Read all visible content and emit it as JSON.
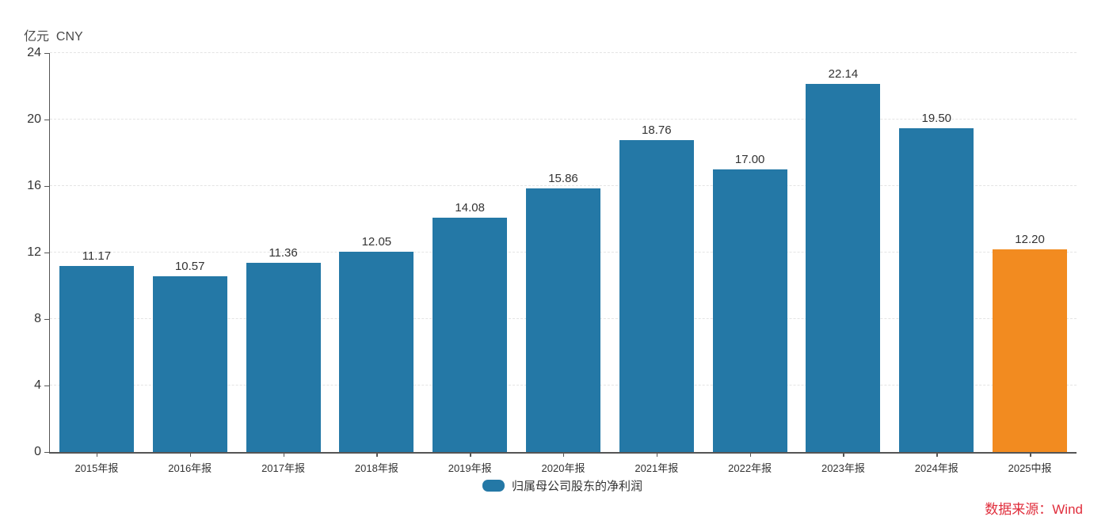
{
  "chart": {
    "unit_label": "亿元  CNY"
  },
  "chart_data": {
    "type": "bar",
    "title": "",
    "categories": [
      "2015年报",
      "2016年报",
      "2017年报",
      "2018年报",
      "2019年报",
      "2020年报",
      "2021年报",
      "2022年报",
      "2023年报",
      "2024年报",
      "2025中报"
    ],
    "series": [
      {
        "name": "归属母公司股东的净利润",
        "values": [
          11.17,
          10.57,
          11.36,
          12.05,
          14.08,
          15.86,
          18.76,
          17.0,
          22.14,
          19.5,
          12.2
        ]
      }
    ],
    "value_labels": [
      "11.17",
      "10.57",
      "11.36",
      "12.05",
      "14.08",
      "15.86",
      "18.76",
      "17.00",
      "22.14",
      "19.50",
      "12.20"
    ],
    "xlabel": "",
    "ylabel": "亿元 CNY",
    "ylim": [
      0,
      24
    ],
    "yticks": [
      0,
      4,
      8,
      12,
      16,
      20,
      24
    ],
    "grid": "horizontal-dashed",
    "legend_position": "bottom-center",
    "highlight_index": 10,
    "colors": {
      "bar": "#2478a6",
      "highlight_bar": "#f28b20",
      "axis": "#555555",
      "grid": "#e4e4e4",
      "text": "#333333",
      "source": "#e02e3c"
    }
  },
  "legend": {
    "label": "归属母公司股东的净利润"
  },
  "footer": {
    "source_text": "数据来源：Wind"
  }
}
